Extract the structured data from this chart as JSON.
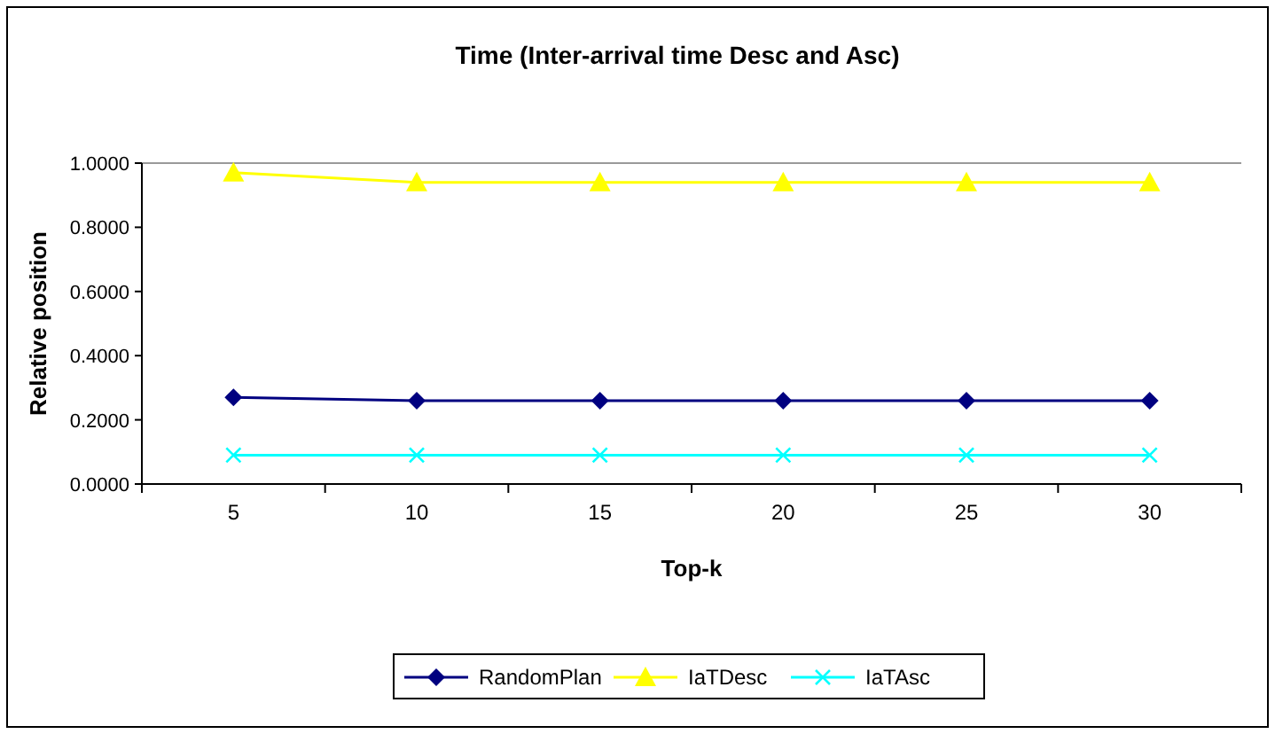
{
  "chart_data": {
    "type": "line",
    "title": "Time (Inter-arrival time Desc and Asc)",
    "xlabel": "Top-k",
    "ylabel": "Relative position",
    "categories": [
      "5",
      "10",
      "15",
      "20",
      "25",
      "30"
    ],
    "series": [
      {
        "name": "RandomPlan",
        "color": "#000080",
        "marker": "diamond",
        "values": [
          0.27,
          0.26,
          0.26,
          0.26,
          0.26,
          0.26
        ]
      },
      {
        "name": "IaTDesc",
        "color": "#ffff00",
        "marker": "triangle",
        "values": [
          0.97,
          0.94,
          0.94,
          0.94,
          0.94,
          0.94
        ]
      },
      {
        "name": "IaTAsc",
        "color": "#00ffff",
        "marker": "cross",
        "values": [
          0.09,
          0.09,
          0.09,
          0.09,
          0.09,
          0.09
        ]
      }
    ],
    "ylim": [
      0,
      1
    ],
    "yticks": [
      {
        "value": 0,
        "label": "0.0000"
      },
      {
        "value": 0.2,
        "label": "0.2000"
      },
      {
        "value": 0.4,
        "label": "0.4000"
      },
      {
        "value": 0.6,
        "label": "0.6000"
      },
      {
        "value": 0.8,
        "label": "0.8000"
      },
      {
        "value": 1,
        "label": "1.0000"
      }
    ],
    "grid": false,
    "legend": "bottom"
  }
}
